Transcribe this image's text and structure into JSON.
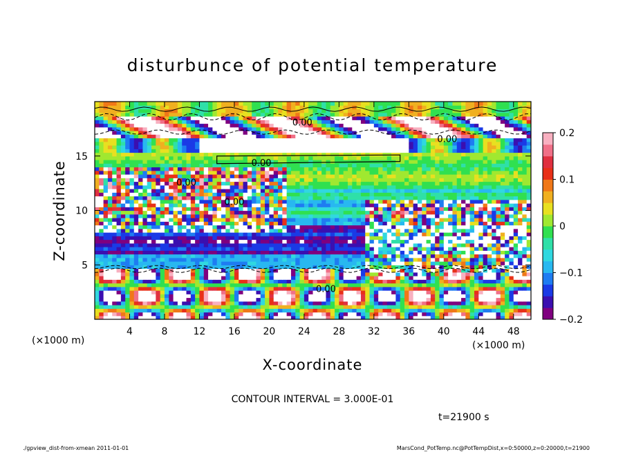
{
  "chart_data": {
    "type": "heatmap",
    "title": "disturbunce of potential temperature",
    "xlabel": "X-coordinate",
    "ylabel": "Z-coordinate",
    "x_unit": "(×1000 m)",
    "z_unit": "(×1000 m)",
    "xlim": [
      0,
      50
    ],
    "ylim": [
      0,
      20
    ],
    "x_ticks": [
      4,
      8,
      12,
      16,
      20,
      24,
      28,
      32,
      36,
      40,
      44,
      48
    ],
    "y_ticks": [
      5,
      10,
      15
    ],
    "colorbar": {
      "min": -0.2,
      "max": 0.2,
      "ticks": [
        "0.2",
        "0.1",
        "0",
        "−0.1",
        "−0.2"
      ],
      "colors": [
        "#7f007f",
        "#3b0fb0",
        "#1a3ae6",
        "#1e7cf2",
        "#28b8f0",
        "#30d8e0",
        "#2fe0a8",
        "#30e050",
        "#a0e830",
        "#e8e020",
        "#f0b020",
        "#f07818",
        "#e83018",
        "#e03040",
        "#f07088",
        "#f8b0c0"
      ]
    },
    "contour_labels": [
      "0.00",
      "0.00",
      "0.00",
      "0.00",
      "0.00",
      "0.00"
    ],
    "contour_interval_text": "CONTOUR INTERVAL = 3.000E-01",
    "time_text": "t=21900 s"
  },
  "footer": {
    "left": "./gpview_dist-from-xmean   2011-01-01",
    "right": "MarsCond_PotTemp.nc@PotTempDist,x=0:50000,z=0:20000,t=21900"
  }
}
